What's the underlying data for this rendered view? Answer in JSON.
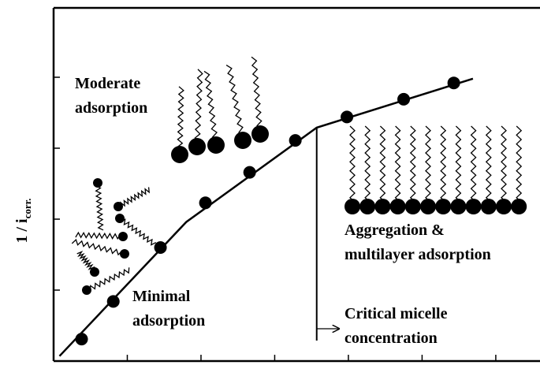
{
  "chart_data": {
    "type": "line",
    "y_label": "1 / i",
    "y_label_sub": "corr.",
    "xlim": [
      0,
      6.6
    ],
    "ylim": [
      0,
      5
    ],
    "xticks": [
      1,
      2,
      3,
      4,
      5,
      6
    ],
    "yticks": [
      1,
      2,
      3,
      4
    ],
    "series": [
      {
        "x": [
          0.08,
          1.8,
          3.57,
          5.69
        ],
        "values": [
          0.07,
          1.96,
          3.29,
          3.98
        ],
        "color": "#000000",
        "marker": false
      },
      {
        "x": [
          0.38,
          0.81,
          1.45,
          2.06,
          2.66,
          3.28,
          3.98,
          4.75,
          5.43
        ],
        "values": [
          0.31,
          0.84,
          1.6,
          2.23,
          2.66,
          3.11,
          3.44,
          3.69,
          3.92
        ],
        "color": "#000000",
        "marker": true
      }
    ],
    "cmc_x": 3.57,
    "annotations": [
      {
        "lines": [
          "Moderate",
          "adsorption"
        ]
      },
      {
        "lines": [
          "Minimal",
          "adsorption"
        ]
      },
      {
        "lines": [
          "Aggregation &",
          "multilayer adsorption"
        ]
      },
      {
        "lines": [
          "Critical micelle",
          "concentration"
        ]
      }
    ]
  }
}
